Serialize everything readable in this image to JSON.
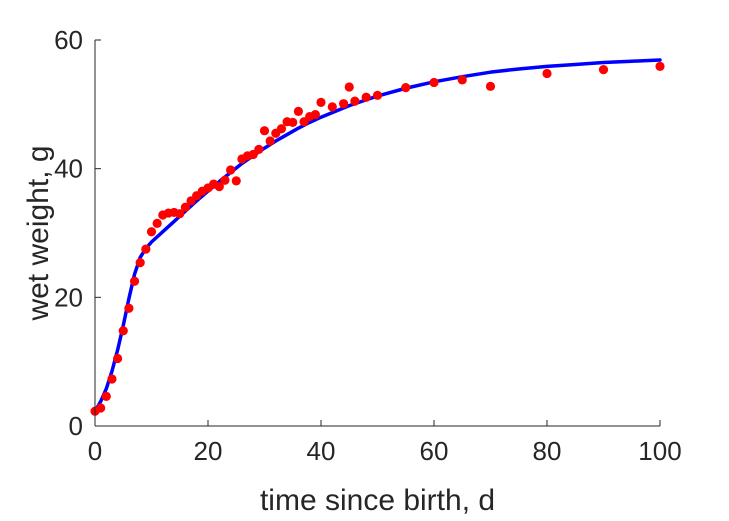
{
  "chart_data": {
    "type": "scatter",
    "title": "",
    "xlabel": "time since birth, d",
    "ylabel": "wet weight, g",
    "xlim": [
      0,
      100
    ],
    "ylim": [
      0,
      60
    ],
    "xticks": [
      0,
      20,
      40,
      60,
      80,
      100
    ],
    "yticks": [
      0,
      20,
      40,
      60
    ],
    "grid": false,
    "legend": "none",
    "colors": {
      "points": "#ff0000",
      "curve": "#0000ff",
      "axes": "#262626"
    },
    "series": [
      {
        "kind": "scatter",
        "points": [
          [
            0,
            2.3
          ],
          [
            1,
            2.8
          ],
          [
            2,
            4.6
          ],
          [
            3,
            7.3
          ],
          [
            4,
            10.5
          ],
          [
            5,
            14.8
          ],
          [
            6,
            18.3
          ],
          [
            7,
            22.5
          ],
          [
            8,
            25.4
          ],
          [
            9,
            27.5
          ],
          [
            10,
            30.2
          ],
          [
            11,
            31.5
          ],
          [
            12,
            32.8
          ],
          [
            13,
            33.1
          ],
          [
            14,
            33.2
          ],
          [
            15,
            33.0
          ],
          [
            16,
            34.0
          ],
          [
            17,
            35.0
          ],
          [
            18,
            35.8
          ],
          [
            19,
            36.5
          ],
          [
            20,
            37.0
          ],
          [
            21,
            37.6
          ],
          [
            22,
            37.2
          ],
          [
            23,
            38.2
          ],
          [
            24,
            39.8
          ],
          [
            25,
            38.1
          ],
          [
            26,
            41.5
          ],
          [
            27,
            42.0
          ],
          [
            28,
            42.2
          ],
          [
            29,
            43.0
          ],
          [
            30,
            45.9
          ],
          [
            31,
            44.3
          ],
          [
            32,
            45.5
          ],
          [
            33,
            46.2
          ],
          [
            34,
            47.3
          ],
          [
            35,
            47.2
          ],
          [
            36,
            48.9
          ],
          [
            37,
            47.3
          ],
          [
            38,
            48.1
          ],
          [
            39,
            48.4
          ],
          [
            40,
            50.3
          ],
          [
            42,
            49.6
          ],
          [
            44,
            50.1
          ],
          [
            45,
            52.7
          ],
          [
            46,
            50.5
          ],
          [
            48,
            51.1
          ],
          [
            50,
            51.4
          ],
          [
            55,
            52.6
          ],
          [
            60,
            53.4
          ],
          [
            65,
            53.8
          ],
          [
            70,
            52.8
          ],
          [
            80,
            54.8
          ],
          [
            90,
            55.4
          ],
          [
            100,
            55.9
          ]
        ]
      },
      {
        "kind": "line",
        "points": [
          [
            0,
            2.3
          ],
          [
            1,
            3.8
          ],
          [
            2,
            5.8
          ],
          [
            3,
            8.5
          ],
          [
            4,
            11.8
          ],
          [
            5,
            15.6
          ],
          [
            6,
            19.8
          ],
          [
            7,
            23.6
          ],
          [
            8,
            26.2
          ],
          [
            9,
            27.6
          ],
          [
            10,
            28.6
          ],
          [
            12,
            30.2
          ],
          [
            14,
            31.8
          ],
          [
            16,
            33.4
          ],
          [
            18,
            35.0
          ],
          [
            20,
            36.5
          ],
          [
            22,
            38.0
          ],
          [
            24,
            39.4
          ],
          [
            26,
            40.8
          ],
          [
            28,
            42.0
          ],
          [
            30,
            43.2
          ],
          [
            32,
            44.3
          ],
          [
            34,
            45.3
          ],
          [
            36,
            46.3
          ],
          [
            38,
            47.2
          ],
          [
            40,
            48.0
          ],
          [
            45,
            49.8
          ],
          [
            50,
            51.3
          ],
          [
            55,
            52.5
          ],
          [
            60,
            53.5
          ],
          [
            65,
            54.3
          ],
          [
            70,
            55.0
          ],
          [
            75,
            55.5
          ],
          [
            80,
            55.9
          ],
          [
            85,
            56.2
          ],
          [
            90,
            56.5
          ],
          [
            95,
            56.7
          ],
          [
            100,
            56.9
          ]
        ]
      }
    ]
  }
}
